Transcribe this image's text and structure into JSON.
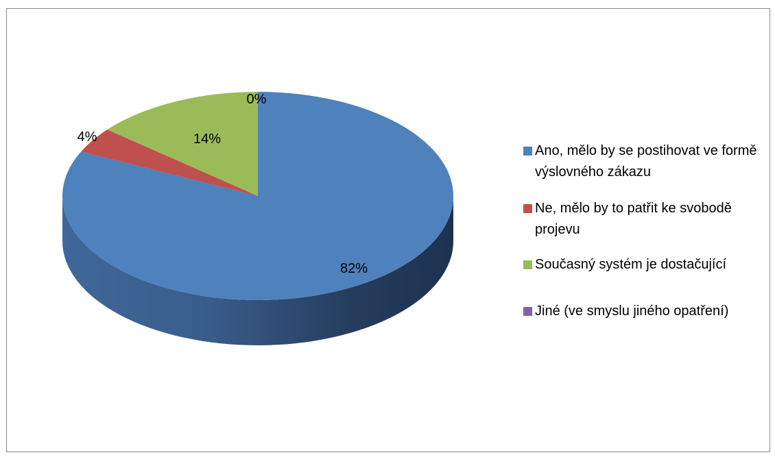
{
  "chart_data": {
    "type": "pie",
    "style": "3d",
    "series": [
      {
        "label": "Ano, mělo by se postihovat ve formě výslovného zákazu",
        "value": 82,
        "display": "82%",
        "color": "#4F81BD"
      },
      {
        "label": "Ne, mělo by to patřit ke svobodě projevu",
        "value": 4,
        "display": "4%",
        "color": "#C0504D"
      },
      {
        "label": "Současný systém je dostačující",
        "value": 14,
        "display": "14%",
        "color": "#9BBB59"
      },
      {
        "label": "Jiné (ve smyslu jiného opatření)",
        "value": 0,
        "display": "0%",
        "color": "#8064A2"
      }
    ],
    "legend_position": "right"
  }
}
